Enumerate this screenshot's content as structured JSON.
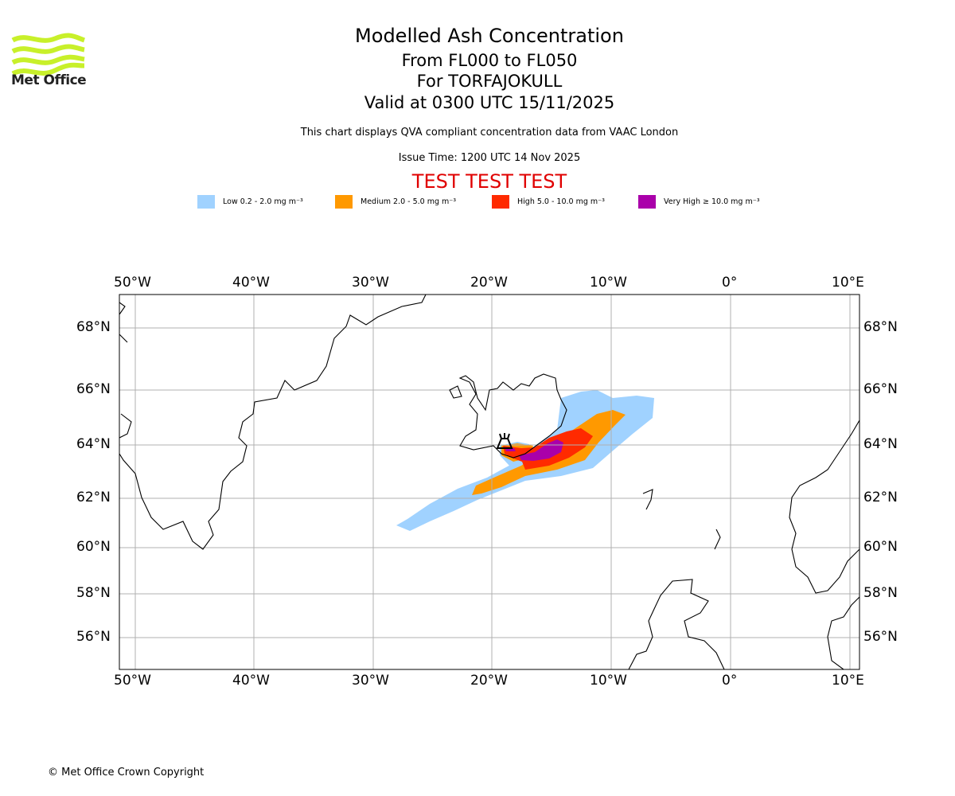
{
  "logo": {
    "text": "Met Office"
  },
  "header": {
    "title": "Modelled Ash Concentration",
    "levels": "From FL000 to FL050",
    "volcano": "For TORFAJOKULL",
    "valid": "Valid at 0300 UTC 15/11/2025",
    "description": "This chart displays QVA compliant concentration data from VAAC London",
    "issue_time": "Issue Time: 1200 UTC 14 Nov 2025",
    "test_banner": "TEST TEST TEST"
  },
  "legend": [
    {
      "label": "Low 0.2 - 2.0 mg m⁻³",
      "color": "#a0d2ff"
    },
    {
      "label": "Medium 2.0 - 5.0 mg m⁻³",
      "color": "#ff9900"
    },
    {
      "label": "High 5.0 - 10.0 mg m⁻³",
      "color": "#ff2a00"
    },
    {
      "label": "Very High ≥ 10.0 mg m⁻³",
      "color": "#aa00aa"
    }
  ],
  "map": {
    "lon_labels": [
      "50°W",
      "40°W",
      "30°W",
      "20°W",
      "10°W",
      "0°",
      "10°E"
    ],
    "lat_labels": [
      "68°N",
      "66°N",
      "64°N",
      "62°N",
      "60°N",
      "58°N",
      "56°N"
    ],
    "volcano_marker": "volcano-icon"
  },
  "footer": {
    "copyright": "© Met Office Crown Copyright"
  }
}
